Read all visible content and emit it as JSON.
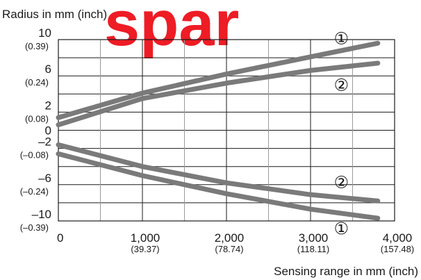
{
  "watermark": {
    "text": "spar",
    "color": "#ee1c25"
  },
  "chart_data": {
    "type": "line",
    "title": "",
    "ylabel": "Radius in mm (inch)",
    "xlabel": "Sensing range in mm (inch)",
    "xlim": [
      0,
      4000
    ],
    "ylim": [
      -10,
      10
    ],
    "grid": true,
    "line_color": "#7a7a7a",
    "x_ticks": [
      {
        "value": 0,
        "label": "0",
        "sub": ""
      },
      {
        "value": 1000,
        "label": "1,000",
        "sub": "(39.37)"
      },
      {
        "value": 2000,
        "label": "2,000",
        "sub": "(78.74)"
      },
      {
        "value": 3000,
        "label": "3,000",
        "sub": "(118.11)"
      },
      {
        "value": 4000,
        "label": "4,000",
        "sub": "(157.48)"
      }
    ],
    "y_ticks": [
      {
        "value": 10,
        "label": "10",
        "sub": "(0.39)"
      },
      {
        "value": 6,
        "label": "6",
        "sub": "(0.24)"
      },
      {
        "value": 2,
        "label": "2",
        "sub": "(0.08)"
      },
      {
        "value": 0,
        "label": "0",
        "sub": ""
      },
      {
        "value": -2,
        "label": "–2",
        "sub": "(–0.08)"
      },
      {
        "value": -6,
        "label": "–6",
        "sub": "(–0.24)"
      },
      {
        "value": -10,
        "label": "–10",
        "sub": "(–0.39)"
      }
    ],
    "series": [
      {
        "marker": "①",
        "x": [
          0,
          1000,
          2000,
          3000,
          3800
        ],
        "y": [
          1.4,
          4.1,
          6.2,
          8.1,
          9.6
        ]
      },
      {
        "marker": "②",
        "x": [
          0,
          1000,
          2000,
          3000,
          3800
        ],
        "y": [
          0.6,
          3.5,
          5.2,
          6.6,
          7.4
        ]
      },
      {
        "marker": "②",
        "x": [
          0,
          1000,
          2000,
          3000,
          3800
        ],
        "y": [
          -1.6,
          -4.0,
          -5.8,
          -7.1,
          -7.8
        ]
      },
      {
        "marker": "①",
        "x": [
          0,
          1000,
          2000,
          3000,
          3800
        ],
        "y": [
          -2.6,
          -5.0,
          -7.0,
          -8.7,
          -9.7
        ]
      }
    ]
  }
}
